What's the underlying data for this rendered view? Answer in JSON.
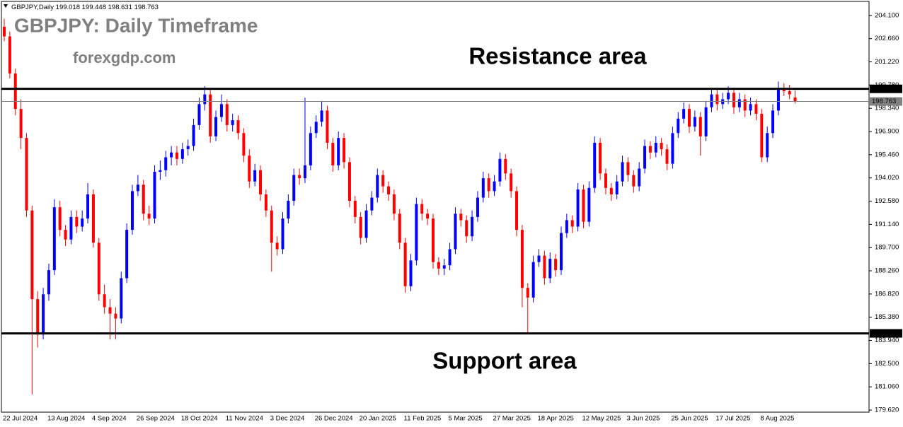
{
  "chart_data": {
    "type": "candlestick",
    "symbol": "GBPJPY,Daily",
    "title": "GBPJPY: Daily Timeframe",
    "subtitle": "forexgdp.com",
    "annotations": [
      "Resistance area",
      "Support area"
    ],
    "up_color": "#0000ff",
    "down_color": "#ff0000",
    "ylim": [
      179.49,
      204.97
    ],
    "yticks": [
      {
        "value": 204.1,
        "label": "204.100"
      },
      {
        "value": 202.66,
        "label": "202.660"
      },
      {
        "value": 201.22,
        "label": "201.220"
      },
      {
        "value": 199.78,
        "label": "199.780"
      },
      {
        "value": 198.34,
        "label": "198.340"
      },
      {
        "value": 196.9,
        "label": "196.900"
      },
      {
        "value": 195.46,
        "label": "195.460"
      },
      {
        "value": 194.02,
        "label": "194.020"
      },
      {
        "value": 192.58,
        "label": "192.580"
      },
      {
        "value": 191.14,
        "label": "191.140"
      },
      {
        "value": 189.7,
        "label": "189.700"
      },
      {
        "value": 188.26,
        "label": "188.260"
      },
      {
        "value": 186.82,
        "label": "186.820"
      },
      {
        "value": 185.38,
        "label": "185.380"
      },
      {
        "value": 183.94,
        "label": "183.940"
      },
      {
        "value": 182.5,
        "label": "182.500"
      },
      {
        "value": 181.06,
        "label": "181.060"
      },
      {
        "value": 179.62,
        "label": "179.620"
      }
    ],
    "levels": [
      {
        "value": 199.546,
        "color": "#000000"
      },
      {
        "value": 198.763,
        "color": "#808080"
      },
      {
        "value": 184.377,
        "color": "#000000"
      }
    ],
    "categories": [
      "22 Jul 2024",
      null,
      null,
      null,
      null,
      null,
      null,
      null,
      "13 Aug 2024",
      null,
      null,
      null,
      null,
      null,
      null,
      null,
      "4 Sep 2024",
      null,
      null,
      null,
      null,
      null,
      null,
      null,
      "26 Sep 2024",
      null,
      null,
      null,
      null,
      null,
      null,
      null,
      "18 Oct 2024",
      null,
      null,
      null,
      null,
      null,
      null,
      null,
      "11 Nov 2024",
      null,
      null,
      null,
      null,
      null,
      null,
      null,
      "3 Dec 2024",
      null,
      null,
      null,
      null,
      null,
      null,
      null,
      "26 Dec 2024",
      null,
      null,
      null,
      null,
      null,
      null,
      null,
      "20 Jan 2025",
      null,
      null,
      null,
      null,
      null,
      null,
      null,
      "11 Feb 2025",
      null,
      null,
      null,
      null,
      null,
      null,
      null,
      "5 Mar 2025",
      null,
      null,
      null,
      null,
      null,
      null,
      null,
      "27 Mar 2025",
      null,
      null,
      null,
      null,
      null,
      null,
      null,
      "18 Apr 2025",
      null,
      null,
      null,
      null,
      null,
      null,
      null,
      "12 May 2025",
      null,
      null,
      null,
      null,
      null,
      null,
      null,
      "3 Jun 2025",
      null,
      null,
      null,
      null,
      null,
      null,
      null,
      "25 Jun 2025",
      null,
      null,
      null,
      null,
      null,
      null,
      null,
      "17 Jul 2025",
      null,
      null,
      null,
      null,
      null,
      null,
      null,
      "8 Aug 2025",
      null,
      null,
      null,
      null,
      null,
      null
    ],
    "ohlc": [
      [
        203.4,
        203.9,
        202.5,
        202.8
      ],
      [
        202.8,
        203.1,
        200.2,
        200.5
      ],
      [
        200.5,
        200.8,
        197.9,
        198.3
      ],
      [
        198.3,
        198.9,
        195.8,
        196.5
      ],
      [
        196.5,
        196.8,
        191.6,
        192.0
      ],
      [
        192.0,
        192.3,
        180.6,
        186.5
      ],
      [
        186.5,
        187.0,
        183.5,
        184.3
      ],
      [
        184.3,
        187.2,
        184.0,
        186.8
      ],
      [
        186.8,
        188.7,
        186.4,
        188.3
      ],
      [
        188.3,
        192.7,
        188.0,
        192.2
      ],
      [
        192.2,
        192.6,
        190.4,
        190.8
      ],
      [
        190.8,
        191.1,
        189.8,
        190.2
      ],
      [
        190.2,
        192.0,
        189.9,
        191.6
      ],
      [
        191.6,
        192.0,
        190.6,
        191.0
      ],
      [
        191.0,
        192.0,
        190.7,
        191.5
      ],
      [
        191.5,
        193.7,
        191.2,
        193.0
      ],
      [
        193.0,
        193.3,
        189.7,
        190.0
      ],
      [
        190.0,
        190.3,
        186.4,
        186.8
      ],
      [
        186.8,
        187.4,
        185.6,
        186.0
      ],
      [
        186.0,
        186.5,
        184.0,
        185.6
      ],
      [
        185.6,
        186.0,
        184.0,
        185.3
      ],
      [
        185.3,
        188.2,
        185.0,
        187.8
      ],
      [
        187.8,
        191.2,
        187.5,
        190.8
      ],
      [
        190.8,
        193.6,
        190.5,
        193.2
      ],
      [
        193.2,
        194.2,
        192.9,
        193.6
      ],
      [
        193.6,
        193.9,
        191.4,
        191.8
      ],
      [
        191.8,
        192.3,
        191.1,
        191.5
      ],
      [
        191.5,
        194.8,
        191.2,
        194.4
      ],
      [
        194.4,
        195.1,
        193.9,
        194.5
      ],
      [
        194.5,
        195.7,
        194.1,
        195.3
      ],
      [
        195.3,
        196.0,
        194.8,
        195.6
      ],
      [
        195.6,
        196.0,
        194.8,
        195.2
      ],
      [
        195.2,
        196.2,
        194.9,
        195.8
      ],
      [
        195.8,
        196.4,
        195.4,
        196.0
      ],
      [
        196.0,
        197.7,
        195.7,
        197.3
      ],
      [
        197.3,
        199.0,
        197.0,
        198.6
      ],
      [
        198.6,
        199.7,
        198.2,
        199.2
      ],
      [
        199.2,
        199.5,
        196.2,
        196.6
      ],
      [
        196.6,
        198.2,
        196.3,
        197.8
      ],
      [
        197.8,
        199.2,
        197.5,
        198.6
      ],
      [
        198.6,
        198.9,
        196.9,
        197.3
      ],
      [
        197.3,
        198.0,
        196.9,
        197.6
      ],
      [
        197.6,
        197.9,
        196.4,
        196.8
      ],
      [
        196.8,
        197.1,
        195.0,
        195.4
      ],
      [
        195.4,
        195.8,
        193.4,
        193.8
      ],
      [
        193.8,
        194.9,
        193.5,
        194.5
      ],
      [
        194.5,
        194.8,
        192.6,
        193.0
      ],
      [
        193.0,
        193.3,
        191.6,
        192.0
      ],
      [
        192.0,
        192.3,
        188.2,
        190.0
      ],
      [
        190.0,
        190.4,
        189.2,
        189.6
      ],
      [
        189.6,
        191.9,
        189.3,
        191.5
      ],
      [
        191.5,
        193.0,
        191.2,
        192.6
      ],
      [
        192.6,
        194.6,
        192.3,
        194.2
      ],
      [
        194.2,
        194.6,
        193.6,
        194.0
      ],
      [
        194.0,
        199.0,
        193.7,
        194.8
      ],
      [
        194.8,
        197.2,
        194.5,
        196.8
      ],
      [
        196.8,
        197.9,
        196.5,
        197.5
      ],
      [
        197.5,
        198.8,
        197.2,
        198.2
      ],
      [
        198.2,
        198.5,
        195.8,
        196.2
      ],
      [
        196.2,
        196.5,
        194.4,
        194.8
      ],
      [
        194.8,
        196.9,
        194.5,
        196.5
      ],
      [
        196.5,
        196.8,
        194.6,
        195.0
      ],
      [
        195.0,
        195.3,
        192.2,
        192.6
      ],
      [
        192.6,
        192.9,
        191.2,
        191.6
      ],
      [
        191.6,
        191.9,
        189.9,
        190.3
      ],
      [
        190.3,
        192.4,
        190.0,
        192.0
      ],
      [
        192.0,
        193.2,
        191.7,
        192.8
      ],
      [
        192.8,
        194.6,
        192.5,
        194.2
      ],
      [
        194.2,
        194.5,
        193.1,
        193.5
      ],
      [
        193.5,
        193.8,
        192.6,
        193.0
      ],
      [
        193.0,
        193.3,
        191.4,
        191.8
      ],
      [
        191.8,
        192.1,
        189.6,
        190.0
      ],
      [
        190.0,
        190.3,
        186.9,
        187.3
      ],
      [
        187.3,
        189.3,
        187.0,
        188.9
      ],
      [
        188.9,
        192.8,
        188.6,
        192.4
      ],
      [
        192.4,
        192.7,
        191.4,
        191.8
      ],
      [
        191.8,
        192.1,
        191.1,
        191.5
      ],
      [
        191.5,
        191.8,
        188.4,
        188.8
      ],
      [
        188.8,
        189.1,
        188.0,
        188.4
      ],
      [
        188.4,
        189.0,
        188.0,
        188.6
      ],
      [
        188.6,
        190.0,
        188.3,
        189.6
      ],
      [
        189.6,
        192.2,
        189.3,
        191.8
      ],
      [
        191.8,
        192.1,
        191.0,
        191.4
      ],
      [
        191.4,
        191.7,
        190.0,
        190.4
      ],
      [
        190.4,
        192.0,
        190.1,
        191.6
      ],
      [
        191.6,
        193.2,
        191.3,
        192.8
      ],
      [
        192.8,
        194.4,
        192.5,
        194.0
      ],
      [
        194.0,
        194.3,
        192.8,
        193.2
      ],
      [
        193.2,
        194.2,
        192.9,
        193.8
      ],
      [
        193.8,
        195.6,
        193.5,
        195.2
      ],
      [
        195.2,
        195.5,
        193.9,
        194.3
      ],
      [
        194.3,
        194.6,
        192.8,
        193.2
      ],
      [
        193.2,
        193.5,
        190.4,
        190.8
      ],
      [
        190.8,
        191.1,
        186.0,
        187.2
      ],
      [
        187.2,
        187.5,
        184.4,
        186.6
      ],
      [
        186.6,
        189.2,
        186.3,
        188.8
      ],
      [
        188.8,
        189.6,
        188.5,
        189.2
      ],
      [
        189.2,
        189.5,
        187.4,
        187.8
      ],
      [
        187.8,
        189.4,
        187.5,
        189.0
      ],
      [
        189.0,
        189.3,
        187.9,
        188.3
      ],
      [
        188.3,
        191.0,
        188.0,
        190.6
      ],
      [
        190.6,
        191.8,
        190.3,
        191.4
      ],
      [
        191.4,
        191.7,
        190.6,
        191.0
      ],
      [
        191.0,
        193.7,
        190.7,
        193.3
      ],
      [
        193.3,
        193.6,
        190.9,
        191.3
      ],
      [
        191.3,
        193.8,
        191.0,
        193.4
      ],
      [
        193.4,
        196.6,
        193.1,
        196.2
      ],
      [
        196.2,
        196.5,
        193.9,
        194.3
      ],
      [
        194.3,
        194.6,
        193.0,
        193.4
      ],
      [
        193.4,
        193.7,
        192.6,
        193.0
      ],
      [
        193.0,
        194.2,
        192.7,
        193.8
      ],
      [
        193.8,
        195.4,
        193.5,
        195.0
      ],
      [
        195.0,
        195.3,
        193.8,
        194.2
      ],
      [
        194.2,
        194.5,
        193.1,
        193.5
      ],
      [
        193.5,
        195.0,
        193.2,
        194.6
      ],
      [
        194.6,
        196.4,
        194.3,
        196.0
      ],
      [
        196.0,
        196.3,
        195.2,
        195.6
      ],
      [
        195.6,
        196.6,
        195.3,
        196.2
      ],
      [
        196.2,
        196.5,
        195.4,
        195.8
      ],
      [
        195.8,
        196.1,
        194.5,
        194.9
      ],
      [
        194.9,
        197.2,
        194.6,
        196.8
      ],
      [
        196.8,
        198.1,
        196.5,
        197.7
      ],
      [
        197.7,
        198.7,
        197.4,
        198.3
      ],
      [
        198.3,
        198.6,
        196.8,
        197.2
      ],
      [
        197.2,
        198.2,
        196.9,
        197.8
      ],
      [
        197.8,
        198.1,
        195.4,
        196.6
      ],
      [
        196.6,
        198.8,
        196.3,
        198.4
      ],
      [
        198.4,
        199.6,
        198.1,
        199.2
      ],
      [
        199.2,
        199.5,
        198.2,
        198.6
      ],
      [
        198.6,
        199.3,
        198.3,
        198.9
      ],
      [
        198.9,
        199.7,
        198.6,
        199.3
      ],
      [
        199.3,
        199.6,
        198.0,
        198.4
      ],
      [
        198.4,
        199.3,
        198.1,
        198.9
      ],
      [
        198.9,
        199.2,
        197.8,
        198.2
      ],
      [
        198.2,
        199.0,
        197.9,
        198.6
      ],
      [
        198.6,
        198.9,
        197.6,
        198.0
      ],
      [
        198.0,
        198.3,
        195.0,
        195.3
      ],
      [
        195.3,
        197.2,
        195.0,
        196.8
      ],
      [
        196.8,
        198.6,
        196.5,
        198.2
      ],
      [
        198.2,
        200.0,
        197.9,
        199.6
      ],
      [
        199.6,
        199.9,
        199.1,
        199.4
      ],
      [
        199.4,
        199.8,
        198.9,
        199.2
      ],
      [
        199.018,
        199.448,
        198.631,
        198.763
      ]
    ]
  }
}
